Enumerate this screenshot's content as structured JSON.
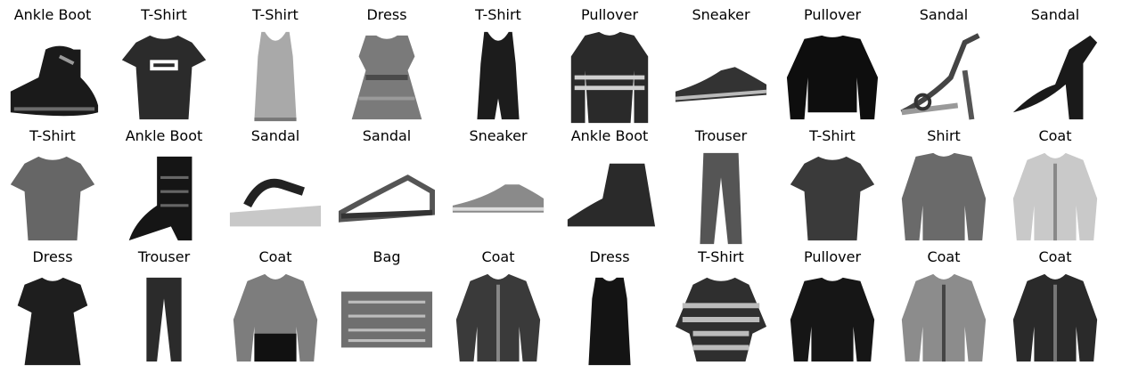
{
  "figure": {
    "rows": [
      [
        {
          "label": "Ankle Boot",
          "icon": "ankle-boot-icon"
        },
        {
          "label": "T-Shirt",
          "icon": "tshirt-icon"
        },
        {
          "label": "T-Shirt",
          "icon": "tank-top-icon"
        },
        {
          "label": "Dress",
          "icon": "dress-icon"
        },
        {
          "label": "T-Shirt",
          "icon": "tank-top-icon"
        },
        {
          "label": "Pullover",
          "icon": "pullover-icon"
        },
        {
          "label": "Sneaker",
          "icon": "sneaker-icon"
        },
        {
          "label": "Pullover",
          "icon": "pullover-icon"
        },
        {
          "label": "Sandal",
          "icon": "sandal-icon"
        },
        {
          "label": "Sandal",
          "icon": "sandal-icon"
        }
      ],
      [
        {
          "label": "T-Shirt",
          "icon": "tshirt-icon"
        },
        {
          "label": "Ankle Boot",
          "icon": "ankle-boot-icon"
        },
        {
          "label": "Sandal",
          "icon": "sandal-icon"
        },
        {
          "label": "Sandal",
          "icon": "sandal-icon"
        },
        {
          "label": "Sneaker",
          "icon": "sneaker-icon"
        },
        {
          "label": "Ankle Boot",
          "icon": "ankle-boot-icon"
        },
        {
          "label": "Trouser",
          "icon": "trouser-icon"
        },
        {
          "label": "T-Shirt",
          "icon": "tshirt-icon"
        },
        {
          "label": "Shirt",
          "icon": "shirt-icon"
        },
        {
          "label": "Coat",
          "icon": "coat-icon"
        }
      ],
      [
        {
          "label": "Dress",
          "icon": "dress-icon"
        },
        {
          "label": "Trouser",
          "icon": "trouser-icon"
        },
        {
          "label": "Coat",
          "icon": "coat-icon"
        },
        {
          "label": "Bag",
          "icon": "bag-icon"
        },
        {
          "label": "Coat",
          "icon": "coat-icon"
        },
        {
          "label": "Dress",
          "icon": "dress-icon"
        },
        {
          "label": "T-Shirt",
          "icon": "tshirt-icon"
        },
        {
          "label": "Pullover",
          "icon": "pullover-icon"
        },
        {
          "label": "Coat",
          "icon": "coat-icon"
        },
        {
          "label": "Coat",
          "icon": "coat-icon"
        }
      ]
    ]
  }
}
